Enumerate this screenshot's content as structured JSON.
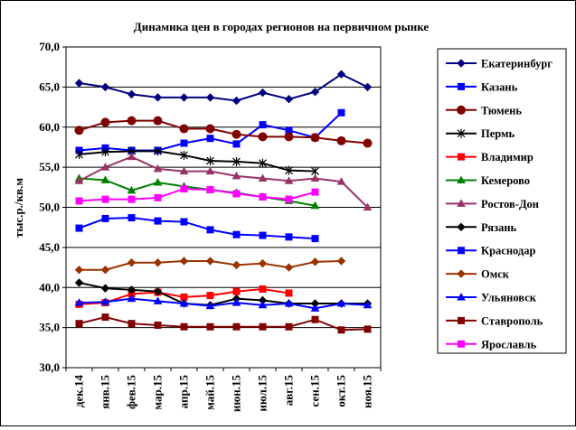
{
  "chart_data": {
    "type": "line",
    "title": "Динамика цен в городах регионов на первичном рынке",
    "ylabel": "тыс.р./кв.м",
    "xlabel": "",
    "ylim": [
      30,
      70
    ],
    "yticks": [
      "30,0",
      "35,0",
      "40,0",
      "45,0",
      "50,0",
      "55,0",
      "60,0",
      "65,0",
      "70,0"
    ],
    "yticks_values": [
      30,
      35,
      40,
      45,
      50,
      55,
      60,
      65,
      70
    ],
    "grid": true,
    "legend_position": "right",
    "categories": [
      "дек.14",
      "янв.15",
      "фев.15",
      "мар.15",
      "апр.15",
      "май.15",
      "июн.15",
      "июл.15",
      "авг.15",
      "сен.15",
      "окт.15",
      "ноя.15"
    ],
    "series": [
      {
        "name": "Екатеринбург",
        "color": "#000080",
        "marker": "diamond",
        "values": [
          65.5,
          65.0,
          64.1,
          63.7,
          63.7,
          63.7,
          63.3,
          64.3,
          63.5,
          64.4,
          66.6,
          65.0
        ]
      },
      {
        "name": "Казань",
        "color": "#0000FF",
        "marker": "square",
        "values": [
          57.1,
          57.4,
          57.1,
          57.1,
          58.0,
          58.6,
          57.9,
          60.3,
          59.6,
          58.7,
          61.8,
          null
        ]
      },
      {
        "name": "Тюмень",
        "color": "#800000",
        "marker": "circle",
        "values": [
          59.6,
          60.6,
          60.8,
          60.8,
          59.8,
          59.8,
          59.1,
          58.8,
          58.8,
          58.7,
          58.3,
          58.0
        ]
      },
      {
        "name": "Пермь",
        "color": "#000000",
        "marker": "star",
        "values": [
          56.6,
          56.9,
          57.0,
          57.0,
          56.5,
          55.8,
          55.7,
          55.5,
          54.6,
          54.5,
          null,
          null
        ]
      },
      {
        "name": "Владимир",
        "color": "#FF0000",
        "marker": "square",
        "values": [
          37.9,
          38.1,
          39.2,
          39.4,
          38.8,
          39.0,
          39.5,
          39.8,
          39.3,
          null,
          null,
          null
        ]
      },
      {
        "name": "Кемерово",
        "color": "#008000",
        "marker": "triangle",
        "values": [
          53.6,
          53.4,
          52.1,
          53.1,
          52.6,
          52.2,
          51.8,
          51.3,
          50.8,
          50.2,
          null,
          null
        ]
      },
      {
        "name": "Ростов-Дон",
        "color": "#993366",
        "marker": "triangle",
        "values": [
          53.3,
          55.0,
          56.3,
          54.8,
          54.5,
          54.5,
          53.9,
          53.6,
          53.3,
          53.6,
          53.2,
          50.0
        ]
      },
      {
        "name": "Рязань",
        "color": "#000000",
        "marker": "diamond",
        "values": [
          40.6,
          39.9,
          39.7,
          39.5,
          38.0,
          37.8,
          38.6,
          38.4,
          38.0,
          38.0,
          38.0,
          38.0
        ]
      },
      {
        "name": "Краснодар",
        "color": "#0000FF",
        "marker": "square",
        "values": [
          47.4,
          48.6,
          48.7,
          48.3,
          48.2,
          47.2,
          46.6,
          46.5,
          46.3,
          46.1,
          null,
          null
        ]
      },
      {
        "name": "Омск",
        "color": "#993300",
        "marker": "diamond",
        "values": [
          42.2,
          42.2,
          43.1,
          43.1,
          43.3,
          43.3,
          42.8,
          43.0,
          42.5,
          43.2,
          43.3,
          null
        ]
      },
      {
        "name": "Ульяновск",
        "color": "#0000FF",
        "marker": "triangle",
        "values": [
          38.1,
          38.2,
          38.6,
          38.3,
          38.0,
          37.7,
          38.1,
          37.8,
          38.0,
          37.4,
          38.0,
          37.8
        ]
      },
      {
        "name": "Ставрополь",
        "color": "#800000",
        "marker": "square",
        "values": [
          35.5,
          36.3,
          35.5,
          35.3,
          35.1,
          35.1,
          35.1,
          35.1,
          35.1,
          36.0,
          34.7,
          34.8
        ]
      },
      {
        "name": "Ярославль",
        "color": "#FF00FF",
        "marker": "square",
        "values": [
          50.8,
          51.0,
          51.0,
          51.2,
          52.3,
          52.2,
          51.7,
          51.3,
          51.0,
          51.9,
          null,
          null
        ]
      }
    ]
  }
}
